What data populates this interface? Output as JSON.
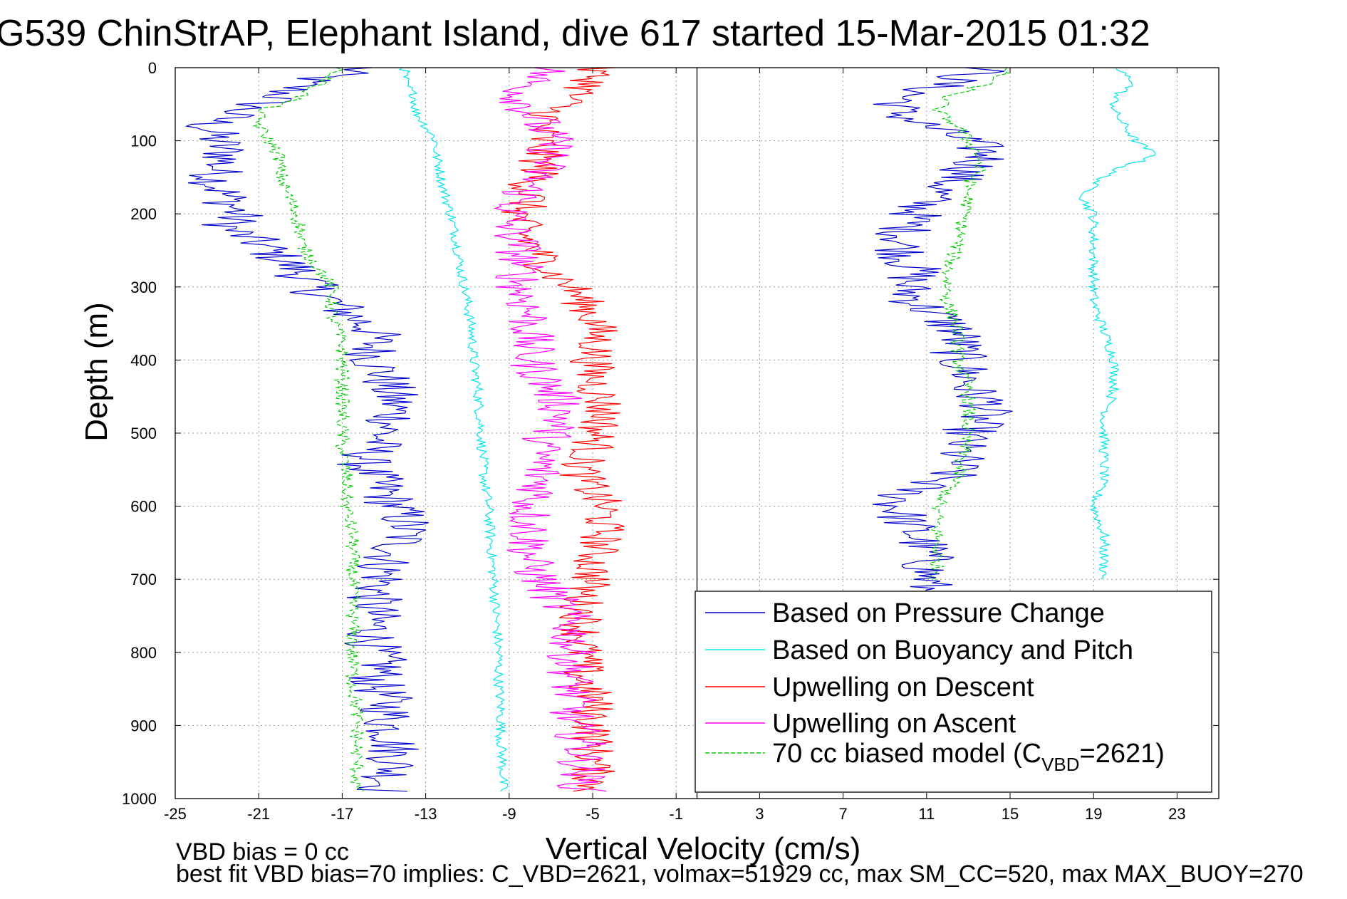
{
  "chart_data": {
    "type": "line",
    "title": "G539 ChinStrAP, Elephant Island, dive 617 started 15-Mar-2015 01:32",
    "xlabel": "Vertical Velocity (cm/s)",
    "ylabel": "Depth (m)",
    "xlim": [
      -25,
      25
    ],
    "ylim": [
      0,
      1000
    ],
    "y_reversed": true,
    "grid": true,
    "legend_position": "bottom-right",
    "x_ticks": [
      "-25",
      "-21",
      "-17",
      "-13",
      "-9",
      "-5",
      "-1",
      "3",
      "7",
      "11",
      "15",
      "19",
      "23"
    ],
    "y_ticks": [
      "0",
      "100",
      "200",
      "300",
      "400",
      "500",
      "600",
      "700",
      "800",
      "900",
      "1000"
    ],
    "vertical_reference_x": 0,
    "series": [
      {
        "name": "Based on Pressure Change",
        "color": "#0000cc",
        "style": "solid",
        "descent": {
          "depth": [
            0,
            20,
            40,
            60,
            80,
            100,
            120,
            140,
            160,
            180,
            200,
            220,
            240,
            260,
            280,
            300,
            320,
            340,
            360,
            380,
            400,
            420,
            440,
            460,
            480,
            500,
            520,
            540,
            560,
            580,
            600,
            620,
            640,
            660,
            680,
            700,
            720,
            740,
            760,
            780,
            800,
            820,
            840,
            860,
            880,
            900,
            920,
            940,
            960,
            980,
            990
          ],
          "velocity": [
            -16,
            -19,
            -20,
            -22,
            -23.5,
            -23,
            -22.5,
            -23,
            -23,
            -22.5,
            -22,
            -22.5,
            -21,
            -20,
            -19,
            -18.5,
            -17.5,
            -16.5,
            -15.5,
            -15.5,
            -15.5,
            -15,
            -14.8,
            -14.5,
            -14.5,
            -15,
            -15.5,
            -16,
            -15.5,
            -15,
            -14.5,
            -14,
            -14,
            -14.5,
            -15,
            -15,
            -15.5,
            -15.5,
            -15.5,
            -15.5,
            -15.5,
            -15,
            -15.5,
            -15,
            -14.8,
            -14.8,
            -14.5,
            -14.5,
            -14.5,
            -15,
            -15
          ]
        },
        "ascent": {
          "depth": [
            0,
            20,
            40,
            60,
            80,
            100,
            120,
            140,
            160,
            180,
            200,
            220,
            240,
            260,
            280,
            300,
            320,
            340,
            360,
            380,
            400,
            420,
            440,
            460,
            480,
            500,
            520,
            540,
            560,
            580,
            600,
            620,
            640,
            660,
            680,
            700,
            715
          ],
          "velocity": [
            14,
            12,
            10,
            9.5,
            11,
            13,
            14,
            13,
            12,
            11,
            10.5,
            10,
            9.8,
            10,
            10.5,
            10,
            10.5,
            11.5,
            12.5,
            12.5,
            12.5,
            13,
            13,
            14,
            13.5,
            13,
            12.5,
            12.5,
            12,
            10,
            9.5,
            10,
            10.5,
            11,
            11,
            11,
            11
          ]
        }
      },
      {
        "name": "Based on Buoyancy and Pitch",
        "color": "#00e5ee",
        "style": "solid",
        "descent": {
          "depth": [
            0,
            20,
            40,
            60,
            80,
            100,
            120,
            140,
            160,
            180,
            200,
            240,
            280,
            320,
            360,
            400,
            440,
            480,
            520,
            560,
            600,
            640,
            680,
            720,
            760,
            800,
            840,
            880,
            920,
            960,
            990
          ],
          "velocity": [
            -14,
            -14,
            -13.5,
            -13.5,
            -13,
            -12.5,
            -12.5,
            -12.3,
            -12.2,
            -12,
            -11.8,
            -11.5,
            -11.3,
            -11,
            -10.8,
            -10.7,
            -10.5,
            -10.4,
            -10.3,
            -10.2,
            -10,
            -9.9,
            -9.8,
            -9.7,
            -9.6,
            -9.5,
            -9.5,
            -9.4,
            -9.4,
            -9.3,
            -9.3
          ]
        },
        "ascent": {
          "depth": [
            0,
            20,
            40,
            60,
            80,
            100,
            120,
            140,
            160,
            180,
            200,
            240,
            280,
            320,
            360,
            400,
            440,
            480,
            520,
            560,
            600,
            640,
            680,
            700
          ],
          "velocity": [
            20,
            21,
            20,
            20,
            20.5,
            21,
            22,
            20,
            19,
            18.5,
            19,
            19,
            19,
            19,
            19.5,
            20,
            20,
            19.5,
            19.5,
            19.5,
            19,
            19.5,
            19.5,
            19.5
          ]
        }
      },
      {
        "name": "Upwelling on Descent",
        "color": "#ff0000",
        "style": "solid",
        "descent": {
          "depth": [
            0,
            20,
            40,
            60,
            80,
            100,
            120,
            140,
            160,
            180,
            200,
            220,
            240,
            260,
            280,
            300,
            320,
            340,
            360,
            380,
            400,
            420,
            440,
            460,
            480,
            500,
            520,
            540,
            560,
            580,
            600,
            620,
            640,
            660,
            680,
            700,
            720,
            740,
            760,
            780,
            800,
            820,
            840,
            860,
            880,
            900,
            920,
            940,
            960,
            980,
            990
          ],
          "velocity": [
            -5,
            -5,
            -6,
            -7,
            -7.5,
            -7.5,
            -7.5,
            -7.5,
            -8,
            -8,
            -8.5,
            -8.5,
            -8,
            -7.5,
            -7,
            -6,
            -5.5,
            -5,
            -4.8,
            -4.8,
            -5,
            -5,
            -4.8,
            -4.5,
            -4.5,
            -4.8,
            -5,
            -5.5,
            -5.5,
            -5,
            -4.5,
            -4.5,
            -4.5,
            -4.8,
            -5,
            -5,
            -5.5,
            -5.5,
            -5.5,
            -5.5,
            -5.5,
            -5.5,
            -5.5,
            -5,
            -5,
            -5,
            -5,
            -5,
            -5,
            -5,
            -5
          ]
        }
      },
      {
        "name": "Upwelling on Ascent",
        "color": "#ff00ff",
        "style": "solid",
        "ascent": {
          "depth": [
            0,
            20,
            40,
            60,
            80,
            100,
            120,
            140,
            160,
            180,
            200,
            220,
            240,
            260,
            280,
            300,
            320,
            340,
            360,
            380,
            400,
            420,
            440,
            460,
            480,
            500,
            520,
            540,
            560,
            580,
            600,
            620,
            640,
            660,
            680,
            700,
            720,
            740,
            760,
            780,
            800,
            820,
            840,
            860,
            880,
            900,
            920,
            940,
            960,
            980,
            990
          ],
          "velocity": [
            -7,
            -8,
            -8.5,
            -8,
            -7.5,
            -7,
            -7,
            -7.5,
            -8,
            -8.5,
            -9,
            -9,
            -8.5,
            -8.5,
            -8.5,
            -8.5,
            -8.2,
            -8,
            -8,
            -8,
            -8,
            -7.5,
            -7,
            -6.5,
            -6.5,
            -7,
            -7.5,
            -7.5,
            -7.5,
            -7.5,
            -8,
            -8,
            -8,
            -8,
            -8,
            -7.5,
            -7,
            -6.5,
            -6,
            -6,
            -6,
            -6,
            -6,
            -6,
            -6,
            -6,
            -5.5,
            -5.5,
            -5.5,
            -5.5,
            -5.5
          ]
        }
      },
      {
        "name": "70 cc biased model (C_VBD=2621)",
        "color": "#00cc00",
        "style": "dashed",
        "descent": {
          "depth": [
            0,
            20,
            40,
            60,
            80,
            100,
            120,
            140,
            160,
            180,
            200,
            220,
            240,
            260,
            280,
            300,
            320,
            340,
            360,
            380,
            400,
            440,
            480,
            520,
            560,
            600,
            640,
            680,
            720,
            760,
            800,
            840,
            880,
            920,
            960,
            990
          ],
          "velocity": [
            -17,
            -18,
            -19,
            -21,
            -21,
            -20.5,
            -20,
            -20,
            -19.8,
            -19.5,
            -19.2,
            -19,
            -19,
            -18.5,
            -18,
            -17.5,
            -17.5,
            -17.5,
            -17.2,
            -17,
            -17,
            -17,
            -17,
            -17,
            -16.8,
            -16.8,
            -16.5,
            -16.5,
            -16.5,
            -16.5,
            -16.5,
            -16.5,
            -16.3,
            -16.3,
            -16.3,
            -16.3
          ]
        },
        "ascent": {
          "depth": [
            0,
            20,
            40,
            60,
            80,
            100,
            120,
            140,
            160,
            180,
            200,
            240,
            280,
            320,
            360,
            400,
            440,
            480,
            520,
            560,
            600,
            640,
            680,
            700
          ],
          "velocity": [
            15,
            14,
            12,
            11.5,
            12.5,
            13,
            13.5,
            13.5,
            13,
            13,
            12.8,
            12.5,
            12,
            12,
            12.5,
            12.5,
            13,
            13,
            12.8,
            12.5,
            11.5,
            11.5,
            11.5,
            11.5
          ]
        }
      }
    ]
  },
  "legend": {
    "items": [
      {
        "label": "Based on Pressure Change",
        "color": "#0000cc",
        "dashed": false
      },
      {
        "label": "Based on Buoyancy and Pitch",
        "color": "#00e5ee",
        "dashed": false
      },
      {
        "label": "Upwelling on Descent",
        "color": "#ff0000",
        "dashed": false
      },
      {
        "label": "Upwelling on Ascent",
        "color": "#ff00ff",
        "dashed": false
      },
      {
        "label": "70 cc biased model (C",
        "sub": "VBD",
        "tail": "=2621)",
        "color": "#00cc00",
        "dashed": true
      }
    ]
  },
  "footer": {
    "line1": "VBD bias = 0 cc",
    "line2": "best fit VBD bias=70 implies: C_VBD=2621, volmax=51929 cc, max SM_CC=520, max MAX_BUOY=270"
  }
}
